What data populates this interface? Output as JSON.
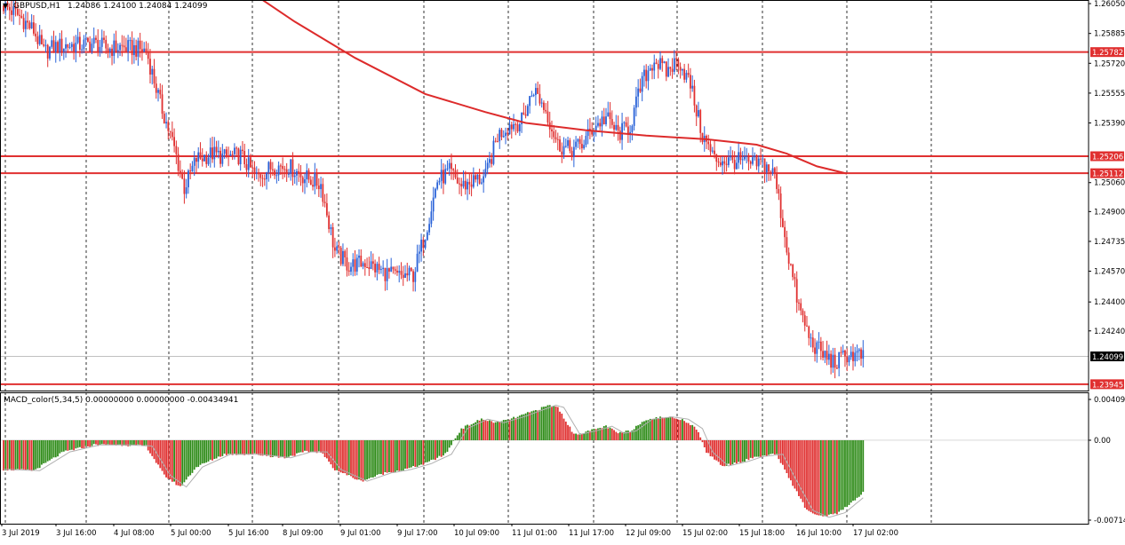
{
  "header": {
    "symbol_title": "GBPUSD,H1",
    "ohlc": "1.24086 1.24100 1.24084 1.24099"
  },
  "macd_panel": {
    "title": "MACD_color(5,34,5) 0.00000000 0.00000000 -0.00434941",
    "axis_labels": [
      "0.004098",
      "0.00",
      "-0.00714"
    ]
  },
  "colors": {
    "bull": "#2962d8",
    "bear": "#e03030",
    "level_line": "#e03030",
    "ma_line": "#dd2b2b",
    "macd_up": "#2e8b18",
    "macd_down": "#e03030",
    "signal_line": "#b0b0b0",
    "grid": "#000000",
    "price_tag_bg": "#000000",
    "level_tag_bg": "#e03030"
  },
  "chart_data": [
    {
      "type": "candlestick",
      "symbol": "GBPUSD",
      "timeframe": "H1",
      "ylim": [
        1.2391,
        1.2607
      ],
      "y_ticks": [
        1.2605,
        1.25885,
        1.2572,
        1.25555,
        1.2539,
        1.2506,
        1.249,
        1.24735,
        1.2457,
        1.244,
        1.2424
      ],
      "x_ticks": [
        "3 Jul 2019",
        "3 Jul 16:00",
        "4 Jul 08:00",
        "5 Jul 00:00",
        "5 Jul 16:00",
        "8 Jul 09:00",
        "9 Jul 01:00",
        "9 Jul 17:00",
        "10 Jul 09:00",
        "11 Jul 01:00",
        "11 Jul 17:00",
        "12 Jul 09:00",
        "15 Jul 02:00",
        "15 Jul 18:00",
        "16 Jul 10:00",
        "17 Jul 02:00"
      ],
      "current_price": 1.24099,
      "horizontal_levels": [
        1.25782,
        1.25206,
        1.25112,
        1.23945
      ],
      "price_path": [
        [
          0,
          1.2604
        ],
        [
          8,
          1.2598
        ],
        [
          15,
          1.259
        ],
        [
          20,
          1.2578
        ],
        [
          25,
          1.2581
        ],
        [
          32,
          1.2582
        ],
        [
          38,
          1.2582
        ],
        [
          45,
          1.2583
        ],
        [
          52,
          1.258
        ],
        [
          58,
          1.2581
        ],
        [
          65,
          1.258
        ],
        [
          71,
          1.2579
        ],
        [
          78,
          1.255
        ],
        [
          85,
          1.2525
        ],
        [
          90,
          1.2503
        ],
        [
          96,
          1.2519
        ],
        [
          104,
          1.2522
        ],
        [
          110,
          1.252
        ],
        [
          118,
          1.2521
        ],
        [
          126,
          1.2509
        ],
        [
          134,
          1.2515
        ],
        [
          142,
          1.2515
        ],
        [
          150,
          1.2509
        ],
        [
          158,
          1.2505
        ],
        [
          165,
          1.2468
        ],
        [
          172,
          1.246
        ],
        [
          180,
          1.2462
        ],
        [
          188,
          1.2457
        ],
        [
          196,
          1.2454
        ],
        [
          204,
          1.2455
        ],
        [
          210,
          1.2478
        ],
        [
          216,
          1.2507
        ],
        [
          222,
          1.2512
        ],
        [
          228,
          1.2504
        ],
        [
          234,
          1.2507
        ],
        [
          240,
          1.2509
        ],
        [
          246,
          1.2532
        ],
        [
          252,
          1.2538
        ],
        [
          258,
          1.254
        ],
        [
          264,
          1.2558
        ],
        [
          270,
          1.2546
        ],
        [
          276,
          1.2527
        ],
        [
          282,
          1.2524
        ],
        [
          288,
          1.2527
        ],
        [
          294,
          1.2537
        ],
        [
          300,
          1.2542
        ],
        [
          306,
          1.2533
        ],
        [
          312,
          1.2537
        ],
        [
          318,
          1.2562
        ],
        [
          324,
          1.2574
        ],
        [
          330,
          1.2567
        ],
        [
          336,
          1.2574
        ],
        [
          342,
          1.256
        ],
        [
          348,
          1.2532
        ],
        [
          354,
          1.2519
        ],
        [
          360,
          1.2518
        ],
        [
          366,
          1.2518
        ],
        [
          372,
          1.2516
        ],
        [
          378,
          1.2517
        ],
        [
          384,
          1.251
        ],
        [
          390,
          1.247
        ],
        [
          396,
          1.2437
        ],
        [
          402,
          1.2418
        ],
        [
          408,
          1.2411
        ],
        [
          414,
          1.2406
        ],
        [
          420,
          1.2411
        ],
        [
          428,
          1.241
        ]
      ],
      "ma_line": [
        [
          125,
          1.261
        ],
        [
          145,
          1.2595
        ],
        [
          175,
          1.2575
        ],
        [
          210,
          1.2555
        ],
        [
          240,
          1.2545
        ],
        [
          260,
          1.2539
        ],
        [
          290,
          1.2535
        ],
        [
          320,
          1.2532
        ],
        [
          350,
          1.253
        ],
        [
          375,
          1.2527
        ],
        [
          390,
          1.2522
        ],
        [
          405,
          1.2515
        ],
        [
          420,
          1.2511
        ]
      ]
    },
    {
      "type": "bar",
      "name": "MACD_color(5,34,5)",
      "ylim": [
        -0.00714,
        0.004098
      ],
      "values_note": "histogram bars with signal line, per bar index 0..428",
      "hist_path": [
        [
          0,
          -0.0025
        ],
        [
          15,
          -0.0026
        ],
        [
          30,
          -0.001
        ],
        [
          45,
          -0.0004
        ],
        [
          60,
          -0.0004
        ],
        [
          71,
          -0.0005
        ],
        [
          80,
          -0.003
        ],
        [
          88,
          -0.004
        ],
        [
          96,
          -0.0023
        ],
        [
          110,
          -0.0012
        ],
        [
          125,
          -0.0012
        ],
        [
          140,
          -0.0015
        ],
        [
          150,
          -0.001
        ],
        [
          158,
          -0.001
        ],
        [
          165,
          -0.0025
        ],
        [
          178,
          -0.0035
        ],
        [
          190,
          -0.0028
        ],
        [
          200,
          -0.0025
        ],
        [
          210,
          -0.002
        ],
        [
          220,
          -0.0012
        ],
        [
          228,
          0.001
        ],
        [
          238,
          0.0018
        ],
        [
          246,
          0.0015
        ],
        [
          256,
          0.002
        ],
        [
          264,
          0.0025
        ],
        [
          272,
          0.003
        ],
        [
          276,
          0.0028
        ],
        [
          284,
          0.0005
        ],
        [
          292,
          0.0008
        ],
        [
          300,
          0.0012
        ],
        [
          306,
          0.0006
        ],
        [
          312,
          0.0008
        ],
        [
          320,
          0.0018
        ],
        [
          330,
          0.002
        ],
        [
          338,
          0.0018
        ],
        [
          345,
          0.001
        ],
        [
          350,
          -0.001
        ],
        [
          358,
          -0.0022
        ],
        [
          368,
          -0.0018
        ],
        [
          375,
          -0.0014
        ],
        [
          385,
          -0.0012
        ],
        [
          392,
          -0.0035
        ],
        [
          400,
          -0.006
        ],
        [
          408,
          -0.0066
        ],
        [
          416,
          -0.0062
        ],
        [
          428,
          -0.0045
        ]
      ]
    }
  ]
}
